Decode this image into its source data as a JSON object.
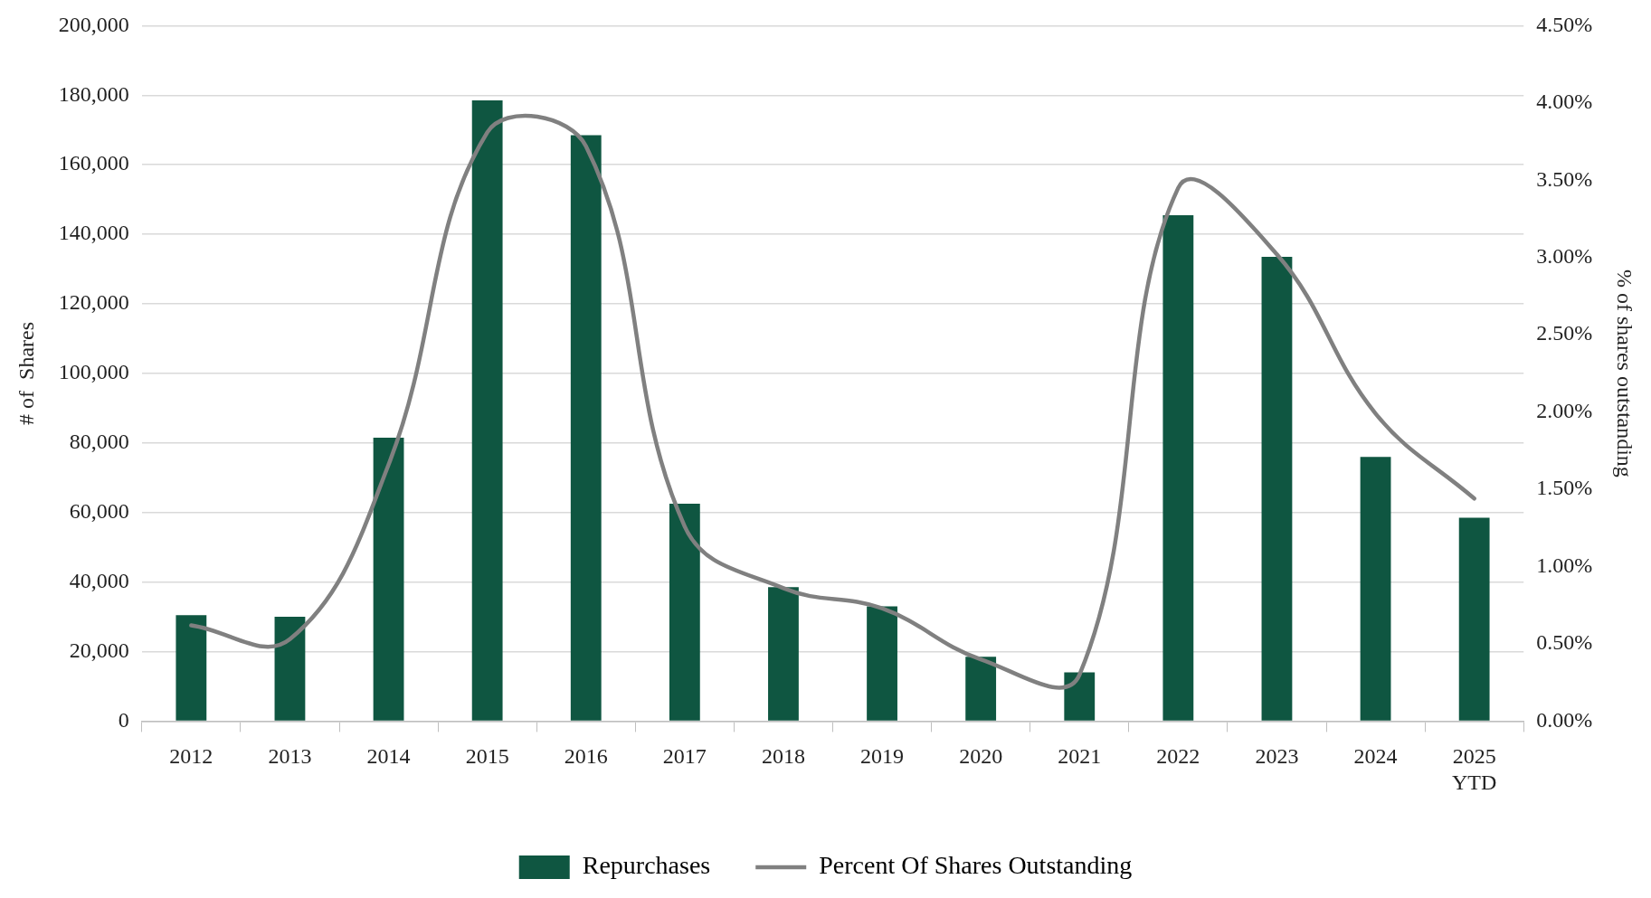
{
  "chart_data": {
    "type": "bar",
    "ylabel": "# of  Shares",
    "y2label": "% of shares outstanding",
    "categories": [
      "2012",
      "2013",
      "2014",
      "2015",
      "2016",
      "2017",
      "2018",
      "2019",
      "2020",
      "2021",
      "2022",
      "2023",
      "2024",
      "2025\nYTD"
    ],
    "series": [
      {
        "name": "Repurchases",
        "color": "#0f5641",
        "values": [
          30500,
          30000,
          81500,
          178500,
          168500,
          62500,
          38500,
          33000,
          18500,
          14000,
          145500,
          133500,
          76000,
          58500
        ]
      },
      {
        "name": "Percent Of Shares Outstanding",
        "type": "line",
        "axis": "y2",
        "color": "#808080",
        "values": [
          0.62,
          0.53,
          1.66,
          3.81,
          3.72,
          1.26,
          0.86,
          0.73,
          0.4,
          0.3,
          3.45,
          3.02,
          1.99,
          1.44
        ]
      }
    ],
    "ylim": [
      0,
      200000
    ],
    "yticks": [
      {
        "value": 0,
        "label": "0"
      },
      {
        "value": 20000,
        "label": "20,000"
      },
      {
        "value": 40000,
        "label": "40,000"
      },
      {
        "value": 60000,
        "label": "60,000"
      },
      {
        "value": 80000,
        "label": "80,000"
      },
      {
        "value": 100000,
        "label": "100,000"
      },
      {
        "value": 120000,
        "label": "120,000"
      },
      {
        "value": 140000,
        "label": "140,000"
      },
      {
        "value": 160000,
        "label": "160,000"
      },
      {
        "value": 180000,
        "label": "180,000"
      },
      {
        "value": 200000,
        "label": "200,000"
      }
    ],
    "y2lim": [
      0,
      4.5
    ],
    "y2ticks": [
      {
        "value": 0,
        "label": "0.00%"
      },
      {
        "value": 0.5,
        "label": "0.50%"
      },
      {
        "value": 1,
        "label": "1.00%"
      },
      {
        "value": 1.5,
        "label": "1.50%"
      },
      {
        "value": 2,
        "label": "2.00%"
      },
      {
        "value": 2.5,
        "label": "2.50%"
      },
      {
        "value": 3,
        "label": "3.00%"
      },
      {
        "value": 3.5,
        "label": "3.50%"
      },
      {
        "value": 4,
        "label": "4.00%"
      },
      {
        "value": 4.5,
        "label": "4.50%"
      }
    ],
    "grid": "y",
    "legend": "bottom",
    "marker": "none",
    "line_style": "solid"
  }
}
